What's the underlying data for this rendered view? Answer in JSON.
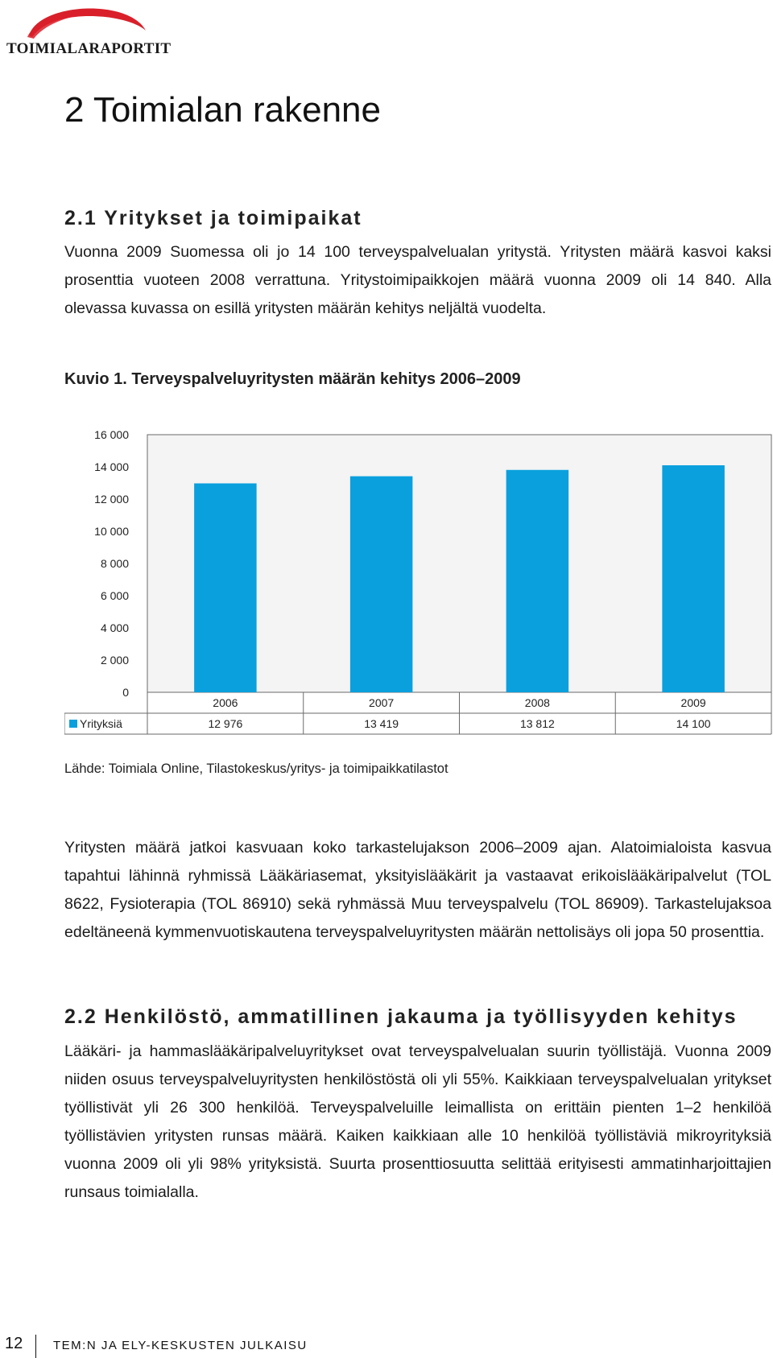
{
  "logo": {
    "text": "TOIMIALARAPORTIT",
    "swoosh_color": "#d9202a"
  },
  "heading1": "2 Toimialan rakenne",
  "section1": {
    "title": "2.1 Yritykset ja toimipaikat",
    "paragraph": "Vuonna 2009 Suomessa oli jo 14 100 terveyspalvelualan yritystä. Yritysten määrä kasvoi kaksi prosenttia vuoteen 2008 verrattuna. Yritystoimipaikkojen määrä vuonna 2009 oli 14 840. Alla olevassa kuvassa on esillä yritysten määrän kehitys neljältä vuodelta."
  },
  "figure": {
    "label": "Kuvio 1.",
    "title": "Terveyspalveluyritysten määrän kehitys 2006–2009",
    "source": "Lähde: Toimiala Online, Tilastokeskus/yritys- ja toimipaikkatilastot"
  },
  "chart_data": {
    "type": "bar",
    "categories": [
      "2006",
      "2007",
      "2008",
      "2009"
    ],
    "series": [
      {
        "name": "Yrityksiä",
        "values": [
          12976,
          13419,
          13812,
          14100
        ],
        "labels": [
          "12 976",
          "13 419",
          "13 812",
          "14 100"
        ],
        "color": "#0aa0dd"
      }
    ],
    "yticks": [
      0,
      2000,
      4000,
      6000,
      8000,
      10000,
      12000,
      14000,
      16000
    ],
    "ytick_labels": [
      "0",
      "2 000",
      "4 000",
      "6 000",
      "8 000",
      "10 000",
      "12 000",
      "14 000",
      "16 000"
    ],
    "ylim": [
      0,
      16000
    ],
    "grid": false,
    "data_table": true,
    "title": "",
    "xlabel": "",
    "ylabel": ""
  },
  "section1_body": "Yritysten määrä jatkoi kasvuaan koko tarkastelujakson 2006–2009 ajan. Alatoimialoista kasvua tapahtui lähinnä ryhmissä Lääkäriasemat, yksityislääkärit ja vastaavat erikoislääkäripalvelut (TOL 8622, Fysioterapia (TOL 86910) sekä ryhmässä Muu terveyspalvelu (TOL 86909). Tarkastelujaksoa edeltäneenä kymmenvuotiskautena terveyspalveluyritysten määrän nettolisäys oli jopa 50 prosenttia.",
  "section2": {
    "title": "2.2 Henkilöstö, ammatillinen jakauma ja työllisyyden kehitys",
    "paragraph": "Lääkäri- ja hammaslääkäripalveluyritykset ovat terveyspalvelualan suurin työllistäjä. Vuonna 2009 niiden osuus terveyspalveluyritysten henkilöstöstä oli yli 55%. Kaikkiaan terveyspalvelualan yritykset työllistivät yli 26 300 henkilöä. Terveyspalveluille leimallista on erittäin pienten 1–2 henkilöä työllistävien yritysten runsas määrä. Kaiken kaikkiaan alle 10 henkilöä työllistäviä mikroyrityksiä vuonna 2009 oli yli 98% yrityksistä. Suurta prosenttiosuutta selittää erityisesti ammatinharjoittajien runsaus toimialalla."
  },
  "footer": {
    "page_number": "12",
    "publication": "TEM:N JA ELY-KESKUSTEN JULKAISU"
  }
}
